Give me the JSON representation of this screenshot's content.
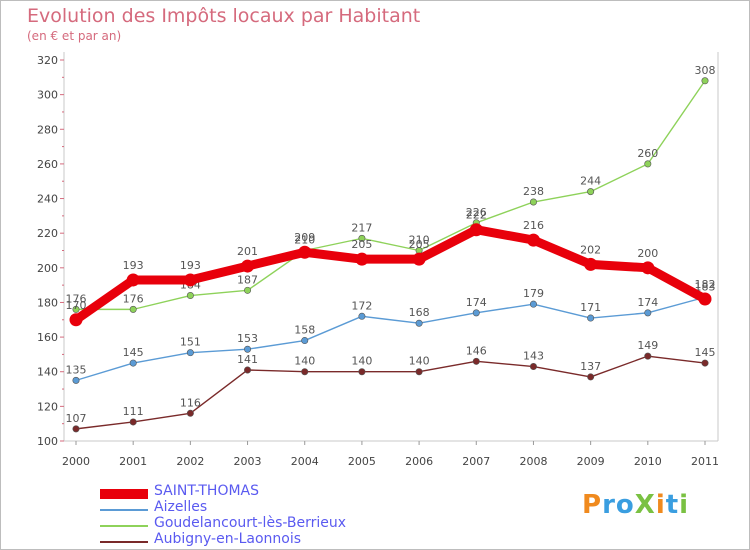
{
  "header": {
    "title": "Evolution des Impôts locaux par Habitant",
    "subtitle": "(en € et par an)"
  },
  "logo": {
    "text": "ProXiti",
    "colors": [
      "#f08a1e",
      "#3a9ee0",
      "#3a9ee0",
      "#7ac142",
      "#f08a1e",
      "#3a9ee0",
      "#7ac142"
    ]
  },
  "chart_data": {
    "type": "line",
    "x": [
      "2000",
      "2001",
      "2002",
      "2003",
      "2004",
      "2005",
      "2006",
      "2007",
      "2008",
      "2009",
      "2010",
      "2011"
    ],
    "ylim": [
      100,
      320
    ],
    "yticks": [
      100,
      120,
      140,
      160,
      180,
      200,
      220,
      240,
      260,
      280,
      300,
      320
    ],
    "grid": false,
    "legend_position": "bottom-left",
    "series": [
      {
        "name": "SAINT-THOMAS",
        "color": "#e8000b",
        "values": [
          170,
          193,
          193,
          201,
          209,
          205,
          205,
          222,
          216,
          202,
          200,
          182
        ]
      },
      {
        "name": "Aizelles",
        "color": "#5b9bd5",
        "values": [
          135,
          145,
          151,
          153,
          158,
          172,
          168,
          174,
          179,
          171,
          174,
          183
        ]
      },
      {
        "name": "Goudelancourt-lès-Berrieux",
        "color": "#8ed25a",
        "values": [
          176,
          176,
          184,
          187,
          210,
          217,
          210,
          226,
          238,
          244,
          260,
          308
        ]
      },
      {
        "name": "Aubigny-en-Laonnois",
        "color": "#7a2a2a",
        "values": [
          107,
          111,
          116,
          141,
          140,
          140,
          140,
          146,
          143,
          137,
          149,
          145
        ]
      }
    ]
  }
}
